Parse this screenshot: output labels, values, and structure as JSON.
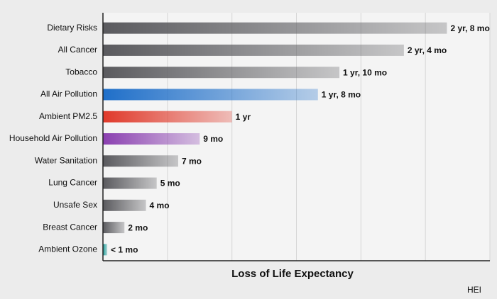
{
  "chart_data": {
    "type": "hbar",
    "x_label": "Loss of Life Expectancy",
    "source": "HEI",
    "categories": [
      "Dietary Risks",
      "All Cancer",
      "Tobacco",
      "All Air Pollution",
      "Ambient PM2.5",
      "Household Air Pollution",
      "Water Sanitation",
      "Lung Cancer",
      "Unsafe Sex",
      "Breast Cancer",
      "Ambient Ozone"
    ],
    "values": [
      32,
      28,
      22,
      20,
      12,
      9,
      7,
      5,
      4,
      2,
      0.4
    ],
    "value_labels": [
      "2 yr, 8 mo",
      "2 yr, 4 mo",
      "1 yr, 10 mo",
      "1 yr, 8 mo",
      "1 yr",
      "9 mo",
      "7 mo",
      "5 mo",
      "4 mo",
      "2 mo",
      "< 1 mo"
    ],
    "colors": [
      "#5a5a5e",
      "#5a5a5e",
      "#5a5a5e",
      "#1f6fc9",
      "#e0392a",
      "#8a3fb0",
      "#5a5a5e",
      "#5a5a5e",
      "#5a5a5e",
      "#5a5a5e",
      "#1a9a96"
    ],
    "xlim": [
      0,
      36
    ],
    "xticks": [
      0,
      6,
      12,
      18,
      24,
      30,
      36
    ],
    "grid": true
  }
}
